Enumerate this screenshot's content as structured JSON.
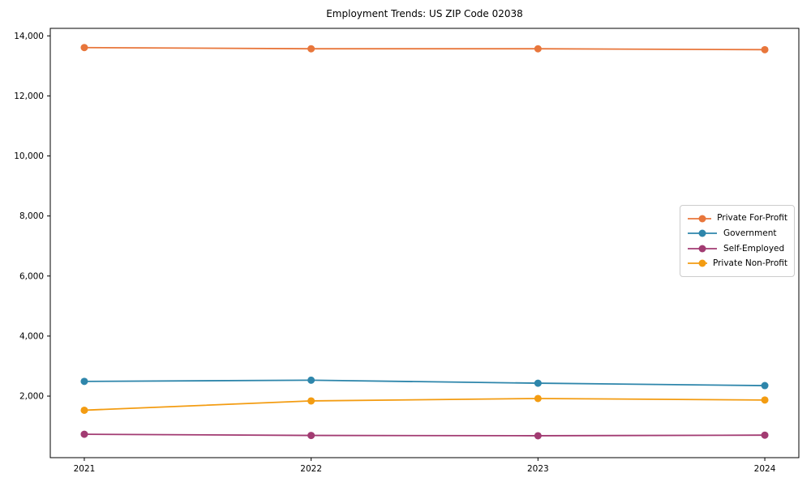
{
  "title": "Employment Trends: US ZIP Code 02038",
  "chart_data": {
    "type": "line",
    "title": "Employment Trends: US ZIP Code 02038",
    "xlabel": "",
    "ylabel": "",
    "x": [
      2021,
      2022,
      2023,
      2024
    ],
    "x_tick_labels": [
      "2021",
      "2022",
      "2023",
      "2024"
    ],
    "y_ticks": [
      2000,
      4000,
      6000,
      8000,
      10000,
      12000,
      14000
    ],
    "y_tick_labels": [
      "2,000",
      "4,000",
      "6,000",
      "8,000",
      "10,000",
      "12,000",
      "14,000"
    ],
    "xlim": [
      2020.85,
      2024.15
    ],
    "ylim": [
      -50,
      14250
    ],
    "grid": false,
    "legend_position": "center right",
    "series": [
      {
        "name": "Private For-Profit",
        "color": "#E8763B",
        "values": [
          13610,
          13570,
          13570,
          13540
        ]
      },
      {
        "name": "Government",
        "color": "#2E86AB",
        "values": [
          2490,
          2530,
          2430,
          2350
        ]
      },
      {
        "name": "Self-Employed",
        "color": "#A23B72",
        "values": [
          730,
          690,
          680,
          700
        ]
      },
      {
        "name": "Private Non-Profit",
        "color": "#F39C12",
        "values": [
          1530,
          1840,
          1920,
          1870
        ]
      }
    ]
  }
}
